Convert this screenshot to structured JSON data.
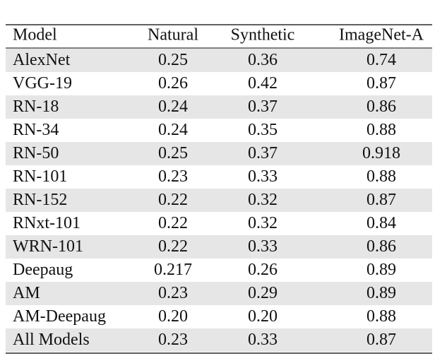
{
  "table": {
    "header": [
      "Model",
      "Natural",
      "Synthetic",
      "ImageNet-A"
    ],
    "rows": [
      [
        "AlexNet",
        "0.25",
        "0.36",
        "0.74"
      ],
      [
        "VGG-19",
        "0.26",
        "0.42",
        "0.87"
      ],
      [
        "RN-18",
        "0.24",
        "0.37",
        "0.86"
      ],
      [
        "RN-34",
        "0.24",
        "0.35",
        "0.88"
      ],
      [
        "RN-50",
        "0.25",
        "0.37",
        "0.918"
      ],
      [
        "RN-101",
        "0.23",
        "0.33",
        "0.88"
      ],
      [
        "RN-152",
        "0.22",
        "0.32",
        "0.87"
      ],
      [
        "RNxt-101",
        "0.22",
        "0.32",
        "0.84"
      ],
      [
        "WRN-101",
        "0.22",
        "0.33",
        "0.86"
      ],
      [
        "Deepaug",
        "0.217",
        "0.26",
        "0.89"
      ],
      [
        "AM",
        "0.23",
        "0.29",
        "0.89"
      ],
      [
        "AM-Deepaug",
        "0.20",
        "0.20",
        "0.88"
      ],
      [
        "All Models",
        "0.23",
        "0.33",
        "0.87"
      ]
    ]
  }
}
